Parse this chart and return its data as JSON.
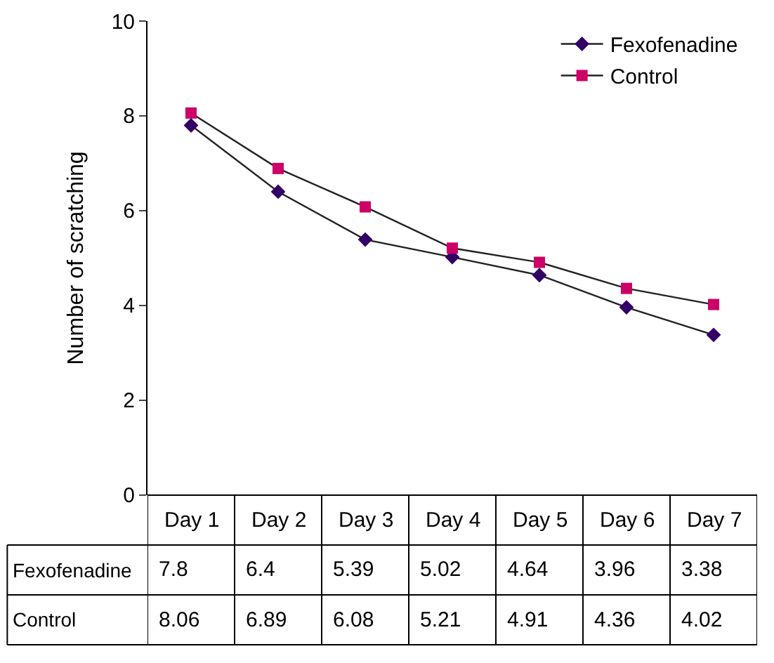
{
  "chart_data": {
    "type": "line",
    "ylabel": "Number of scratching",
    "categories": [
      "Day 1",
      "Day 2",
      "Day 3",
      "Day 4",
      "Day 5",
      "Day 6",
      "Day 7"
    ],
    "series": [
      {
        "name": "Fexofenadine",
        "color": "#330066",
        "marker": "diamond",
        "values": [
          7.8,
          6.4,
          5.39,
          5.02,
          4.64,
          3.96,
          3.38
        ]
      },
      {
        "name": "Control",
        "color": "#cc0066",
        "marker": "square",
        "values": [
          8.06,
          6.89,
          6.08,
          5.21,
          4.91,
          4.36,
          4.02
        ]
      }
    ],
    "ylim": [
      0,
      10
    ],
    "yticks": [
      0,
      2,
      4,
      6,
      8,
      10
    ],
    "legend": "top right",
    "data_labels": true,
    "line_style": "solid"
  }
}
